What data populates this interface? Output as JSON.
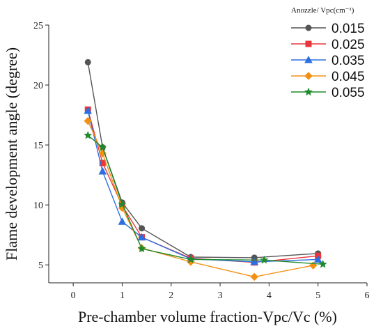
{
  "chart_data": {
    "type": "line",
    "xlabel": "Pre-chamber volume fraction-Vpc/Vc (%)",
    "ylabel": "Flame development angle (degree)",
    "xlim": [
      -0.5,
      6
    ],
    "ylim": [
      3.5,
      25
    ],
    "xticks": [
      0,
      1,
      2,
      3,
      4,
      5,
      6
    ],
    "yticks": [
      5,
      10,
      15,
      20,
      25
    ],
    "legend_title": "Anozzle/ Vpc(cm⁻¹)",
    "legend_position": "top-right",
    "grid": false,
    "series": [
      {
        "name": "0.015",
        "color": "#555555",
        "marker": "circle",
        "points": [
          [
            0.3,
            21.9
          ],
          [
            0.6,
            14.8
          ],
          [
            1.0,
            10.2
          ],
          [
            1.4,
            8.05
          ],
          [
            2.4,
            5.65
          ],
          [
            3.7,
            5.6
          ],
          [
            5.0,
            5.95
          ]
        ]
      },
      {
        "name": "0.025",
        "color": "#e8363c",
        "marker": "square",
        "points": [
          [
            0.3,
            17.95
          ],
          [
            0.6,
            13.5
          ],
          [
            1.0,
            9.95
          ],
          [
            1.4,
            7.3
          ],
          [
            2.4,
            5.55
          ],
          [
            3.7,
            5.2
          ],
          [
            5.0,
            5.75
          ]
        ]
      },
      {
        "name": "0.035",
        "color": "#2b6fe0",
        "marker": "triangle",
        "points": [
          [
            0.3,
            17.85
          ],
          [
            0.6,
            12.8
          ],
          [
            1.0,
            8.6
          ],
          [
            1.4,
            7.3
          ],
          [
            2.4,
            5.5
          ],
          [
            3.7,
            5.25
          ],
          [
            5.0,
            5.45
          ]
        ]
      },
      {
        "name": "0.045",
        "color": "#f39012",
        "marker": "diamond",
        "points": [
          [
            0.3,
            17.0
          ],
          [
            0.6,
            14.3
          ],
          [
            1.0,
            9.75
          ],
          [
            1.4,
            6.4
          ],
          [
            2.4,
            5.25
          ],
          [
            3.7,
            4.0
          ],
          [
            4.9,
            4.95
          ]
        ]
      },
      {
        "name": "0.055",
        "color": "#1e8a2c",
        "marker": "star",
        "points": [
          [
            0.3,
            15.8
          ],
          [
            0.6,
            14.8
          ],
          [
            1.0,
            10.05
          ],
          [
            1.4,
            6.35
          ],
          [
            2.4,
            5.45
          ],
          [
            3.9,
            5.4
          ],
          [
            5.1,
            5.05
          ]
        ]
      }
    ]
  }
}
